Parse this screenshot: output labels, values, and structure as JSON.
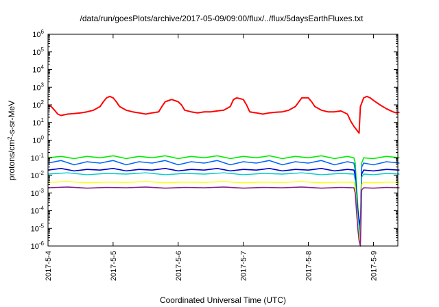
{
  "chart_data": {
    "type": "line",
    "title": "/data/run/goesPlots/archive/2017-05-09/09:00/flux/../flux/5daysEarthFluxes.txt",
    "xlabel": "Coordinated Universal Time (UTC)",
    "ylabel": "protons/cm2-s-sr-MeV",
    "ylabel_parts": {
      "base": "protons/cm",
      "sup": "2",
      "rest": "-s-sr-MeV"
    },
    "yscale": "log",
    "ylim": [
      1e-06,
      1000000.0
    ],
    "yticks": [
      {
        "value": 1e-06,
        "base": "10",
        "exp": "-6"
      },
      {
        "value": 1e-05,
        "base": "10",
        "exp": "-5"
      },
      {
        "value": 0.0001,
        "base": "10",
        "exp": "-4"
      },
      {
        "value": 0.001,
        "base": "10",
        "exp": "-3"
      },
      {
        "value": 0.01,
        "base": "10",
        "exp": "-2"
      },
      {
        "value": 0.1,
        "base": "10",
        "exp": "-1"
      },
      {
        "value": 1,
        "base": "10",
        "exp": "0"
      },
      {
        "value": 10.0,
        "base": "10",
        "exp": "1"
      },
      {
        "value": 100.0,
        "base": "10",
        "exp": "2"
      },
      {
        "value": 1000.0,
        "base": "10",
        "exp": "3"
      },
      {
        "value": 10000.0,
        "base": "10",
        "exp": "4"
      },
      {
        "value": 100000.0,
        "base": "10",
        "exp": "5"
      },
      {
        "value": 1000000.0,
        "base": "10",
        "exp": "6"
      }
    ],
    "xlim": [
      "2017-05-04 00:00",
      "2017-05-09 09:00"
    ],
    "xticks": [
      {
        "label": "2017-5-4",
        "day": 0
      },
      {
        "label": "2017-5-5",
        "day": 1
      },
      {
        "label": "2017-5-6",
        "day": 2
      },
      {
        "label": "2017-5-7",
        "day": 3
      },
      {
        "label": "2017-5-8",
        "day": 4
      },
      {
        "label": "2017-5-9",
        "day": 5
      }
    ],
    "grid": false,
    "legend": "none",
    "series": [
      {
        "color": "#ff0000",
        "width": 2.0,
        "points": [
          [
            0,
            100
          ],
          [
            0.05,
            80
          ],
          [
            0.1,
            50
          ],
          [
            0.15,
            30
          ],
          [
            0.2,
            25
          ],
          [
            0.3,
            30
          ],
          [
            0.4,
            32
          ],
          [
            0.5,
            35
          ],
          [
            0.6,
            40
          ],
          [
            0.7,
            50
          ],
          [
            0.8,
            80
          ],
          [
            0.85,
            150
          ],
          [
            0.9,
            250
          ],
          [
            0.95,
            300
          ],
          [
            1.0,
            250
          ],
          [
            1.05,
            150
          ],
          [
            1.1,
            80
          ],
          [
            1.2,
            50
          ],
          [
            1.3,
            40
          ],
          [
            1.4,
            35
          ],
          [
            1.5,
            30
          ],
          [
            1.6,
            35
          ],
          [
            1.7,
            40
          ],
          [
            1.75,
            80
          ],
          [
            1.8,
            150
          ],
          [
            1.9,
            200
          ],
          [
            2.0,
            150
          ],
          [
            2.05,
            100
          ],
          [
            2.1,
            50
          ],
          [
            2.2,
            40
          ],
          [
            2.3,
            35
          ],
          [
            2.4,
            40
          ],
          [
            2.5,
            40
          ],
          [
            2.6,
            45
          ],
          [
            2.7,
            50
          ],
          [
            2.8,
            80
          ],
          [
            2.85,
            200
          ],
          [
            2.9,
            250
          ],
          [
            3.0,
            200
          ],
          [
            3.05,
            100
          ],
          [
            3.1,
            40
          ],
          [
            3.2,
            35
          ],
          [
            3.3,
            30
          ],
          [
            3.4,
            35
          ],
          [
            3.5,
            38
          ],
          [
            3.6,
            40
          ],
          [
            3.7,
            50
          ],
          [
            3.8,
            80
          ],
          [
            3.9,
            250
          ],
          [
            4.0,
            250
          ],
          [
            4.05,
            150
          ],
          [
            4.1,
            80
          ],
          [
            4.2,
            50
          ],
          [
            4.3,
            40
          ],
          [
            4.4,
            40
          ],
          [
            4.5,
            45
          ],
          [
            4.6,
            30
          ],
          [
            4.65,
            12
          ],
          [
            4.7,
            6
          ],
          [
            4.75,
            3.5
          ],
          [
            4.78,
            2.5
          ],
          [
            4.8,
            80
          ],
          [
            4.85,
            250
          ],
          [
            4.9,
            300
          ],
          [
            4.95,
            250
          ],
          [
            5.0,
            180
          ],
          [
            5.1,
            100
          ],
          [
            5.2,
            60
          ],
          [
            5.3,
            40
          ],
          [
            5.35,
            35
          ],
          [
            5.4,
            38
          ]
        ]
      },
      {
        "color": "#00ee00",
        "width": 1.6,
        "points": [
          [
            0,
            0.1
          ],
          [
            0.2,
            0.12
          ],
          [
            0.4,
            0.09
          ],
          [
            0.6,
            0.12
          ],
          [
            0.8,
            0.1
          ],
          [
            1.0,
            0.13
          ],
          [
            1.2,
            0.09
          ],
          [
            1.4,
            0.12
          ],
          [
            1.6,
            0.1
          ],
          [
            1.8,
            0.13
          ],
          [
            2.0,
            0.09
          ],
          [
            2.2,
            0.12
          ],
          [
            2.4,
            0.1
          ],
          [
            2.6,
            0.13
          ],
          [
            2.8,
            0.09
          ],
          [
            3.0,
            0.12
          ],
          [
            3.2,
            0.1
          ],
          [
            3.4,
            0.13
          ],
          [
            3.6,
            0.09
          ],
          [
            3.8,
            0.12
          ],
          [
            4.0,
            0.1
          ],
          [
            4.2,
            0.13
          ],
          [
            4.4,
            0.09
          ],
          [
            4.6,
            0.12
          ],
          [
            4.7,
            0.1
          ],
          [
            4.72,
            0.05
          ],
          [
            4.74,
            0.003
          ],
          [
            4.76,
            0.0002
          ],
          [
            4.78,
            2e-05
          ],
          [
            4.8,
            2e-06
          ],
          [
            4.82,
            0.05
          ],
          [
            4.85,
            0.1
          ],
          [
            5.0,
            0.09
          ],
          [
            5.2,
            0.12
          ],
          [
            5.4,
            0.1
          ]
        ]
      },
      {
        "color": "#0066ff",
        "width": 1.6,
        "points": [
          [
            0,
            0.05
          ],
          [
            0.2,
            0.07
          ],
          [
            0.4,
            0.04
          ],
          [
            0.6,
            0.06
          ],
          [
            0.8,
            0.05
          ],
          [
            1.0,
            0.07
          ],
          [
            1.2,
            0.04
          ],
          [
            1.4,
            0.06
          ],
          [
            1.6,
            0.05
          ],
          [
            1.8,
            0.07
          ],
          [
            2.0,
            0.04
          ],
          [
            2.2,
            0.06
          ],
          [
            2.4,
            0.05
          ],
          [
            2.6,
            0.07
          ],
          [
            2.8,
            0.04
          ],
          [
            3.0,
            0.06
          ],
          [
            3.2,
            0.05
          ],
          [
            3.4,
            0.07
          ],
          [
            3.6,
            0.04
          ],
          [
            3.8,
            0.06
          ],
          [
            4.0,
            0.05
          ],
          [
            4.2,
            0.07
          ],
          [
            4.4,
            0.04
          ],
          [
            4.6,
            0.06
          ],
          [
            4.7,
            0.05
          ],
          [
            4.72,
            0.02
          ],
          [
            4.74,
            0.001
          ],
          [
            4.76,
            0.0001
          ],
          [
            4.78,
            2e-05
          ],
          [
            4.8,
            8e-06
          ],
          [
            4.82,
            0.03
          ],
          [
            4.85,
            0.05
          ],
          [
            5.0,
            0.04
          ],
          [
            5.2,
            0.06
          ],
          [
            5.4,
            0.05
          ]
        ]
      },
      {
        "color": "#0000cc",
        "width": 1.6,
        "points": [
          [
            0,
            0.02
          ],
          [
            0.2,
            0.025
          ],
          [
            0.4,
            0.018
          ],
          [
            0.6,
            0.022
          ],
          [
            0.8,
            0.02
          ],
          [
            1.0,
            0.025
          ],
          [
            1.2,
            0.018
          ],
          [
            1.4,
            0.022
          ],
          [
            1.6,
            0.02
          ],
          [
            1.8,
            0.025
          ],
          [
            2.0,
            0.018
          ],
          [
            2.2,
            0.022
          ],
          [
            2.4,
            0.02
          ],
          [
            2.6,
            0.025
          ],
          [
            2.8,
            0.018
          ],
          [
            3.0,
            0.022
          ],
          [
            3.2,
            0.02
          ],
          [
            3.4,
            0.025
          ],
          [
            3.6,
            0.018
          ],
          [
            3.8,
            0.022
          ],
          [
            4.0,
            0.02
          ],
          [
            4.2,
            0.025
          ],
          [
            4.4,
            0.018
          ],
          [
            4.6,
            0.022
          ],
          [
            4.7,
            0.02
          ],
          [
            4.72,
            0.01
          ],
          [
            4.74,
            0.0008
          ],
          [
            4.76,
            0.0001
          ],
          [
            4.78,
            3e-05
          ],
          [
            4.8,
            1.5e-05
          ],
          [
            4.82,
            0.012
          ],
          [
            4.85,
            0.02
          ],
          [
            5.0,
            0.018
          ],
          [
            5.2,
            0.022
          ],
          [
            5.4,
            0.02
          ]
        ]
      },
      {
        "color": "#00cccc",
        "width": 1.4,
        "points": [
          [
            0,
            0.012
          ],
          [
            0.3,
            0.014
          ],
          [
            0.6,
            0.011
          ],
          [
            0.9,
            0.013
          ],
          [
            1.2,
            0.012
          ],
          [
            1.5,
            0.014
          ],
          [
            1.8,
            0.011
          ],
          [
            2.1,
            0.013
          ],
          [
            2.4,
            0.012
          ],
          [
            2.7,
            0.014
          ],
          [
            3.0,
            0.011
          ],
          [
            3.3,
            0.013
          ],
          [
            3.6,
            0.012
          ],
          [
            3.9,
            0.014
          ],
          [
            4.2,
            0.011
          ],
          [
            4.5,
            0.013
          ],
          [
            4.7,
            0.012
          ],
          [
            4.72,
            0.005
          ],
          [
            4.74,
            0.0004
          ],
          [
            4.76,
            5e-05
          ],
          [
            4.78,
            8e-06
          ],
          [
            4.8,
            3e-06
          ],
          [
            4.82,
            0.008
          ],
          [
            4.85,
            0.012
          ],
          [
            5.0,
            0.011
          ],
          [
            5.2,
            0.013
          ],
          [
            5.4,
            0.012
          ]
        ]
      },
      {
        "color": "#ffff00",
        "width": 1.4,
        "points": [
          [
            0,
            0.004
          ],
          [
            0.3,
            0.0045
          ],
          [
            0.6,
            0.0038
          ],
          [
            0.9,
            0.0042
          ],
          [
            1.2,
            0.004
          ],
          [
            1.5,
            0.0045
          ],
          [
            1.8,
            0.0038
          ],
          [
            2.1,
            0.0042
          ],
          [
            2.4,
            0.004
          ],
          [
            2.7,
            0.0045
          ],
          [
            3.0,
            0.0038
          ],
          [
            3.3,
            0.0042
          ],
          [
            3.6,
            0.004
          ],
          [
            3.9,
            0.0045
          ],
          [
            4.2,
            0.0038
          ],
          [
            4.5,
            0.0042
          ],
          [
            4.7,
            0.004
          ],
          [
            4.72,
            0.002
          ],
          [
            4.74,
            0.0002
          ],
          [
            4.76,
            2e-05
          ],
          [
            4.78,
            4e-06
          ],
          [
            4.8,
            2e-06
          ],
          [
            4.82,
            0.003
          ],
          [
            4.85,
            0.004
          ],
          [
            5.0,
            0.0038
          ],
          [
            5.2,
            0.0042
          ],
          [
            5.4,
            0.004
          ]
        ]
      },
      {
        "color": "#882288",
        "width": 1.6,
        "points": [
          [
            0,
            0.002
          ],
          [
            0.3,
            0.0022
          ],
          [
            0.6,
            0.0019
          ],
          [
            0.9,
            0.0021
          ],
          [
            1.2,
            0.002
          ],
          [
            1.5,
            0.0022
          ],
          [
            1.8,
            0.0019
          ],
          [
            2.1,
            0.0021
          ],
          [
            2.4,
            0.002
          ],
          [
            2.7,
            0.0022
          ],
          [
            3.0,
            0.0019
          ],
          [
            3.3,
            0.0021
          ],
          [
            3.6,
            0.002
          ],
          [
            3.9,
            0.0022
          ],
          [
            4.2,
            0.0019
          ],
          [
            4.5,
            0.0021
          ],
          [
            4.7,
            0.002
          ],
          [
            4.72,
            0.001
          ],
          [
            4.74,
            0.0001
          ],
          [
            4.76,
            1e-05
          ],
          [
            4.78,
            2e-06
          ],
          [
            4.8,
            1e-06
          ],
          [
            4.82,
            0.0015
          ],
          [
            4.85,
            0.002
          ],
          [
            5.0,
            0.0019
          ],
          [
            5.2,
            0.0021
          ],
          [
            5.4,
            0.002
          ]
        ]
      }
    ]
  }
}
